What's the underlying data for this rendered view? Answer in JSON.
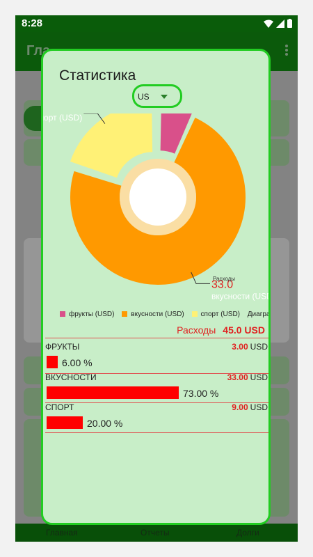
{
  "status": {
    "time": "8:28"
  },
  "background_app": {
    "title": "Гла",
    "nav": [
      "Главная",
      "Отчеты",
      "Долги"
    ]
  },
  "dialog": {
    "title": "Статистика",
    "currency_selected": "US",
    "legend": [
      {
        "label": "фрукты (USD)",
        "color": "#d9508a"
      },
      {
        "label": "вкусности (USD)",
        "color": "#ff9900"
      },
      {
        "label": "спорт (USD)",
        "color": "#fff176"
      },
      {
        "label": "Диаграмма",
        "color": ""
      }
    ],
    "total_label": "Расходы",
    "total_value": "45.0 USD",
    "categories": [
      {
        "name": "ФРУКТЫ",
        "amount": "3.00",
        "currency": "USD",
        "percent": "6.00 %",
        "share": 0.06
      },
      {
        "name": "ВКУСНОСТИ",
        "amount": "33.00",
        "currency": "USD",
        "percent": "73.00 %",
        "share": 0.73
      },
      {
        "name": "СПОРТ",
        "amount": "9.00",
        "currency": "USD",
        "percent": "20.00 %",
        "share": 0.2
      }
    ]
  },
  "chart_data": {
    "type": "pie",
    "center_label": "Расходы",
    "slices": [
      {
        "label": "фрукты (USD)",
        "value": 3.0,
        "value_label": "3.0",
        "color": "#d9508a"
      },
      {
        "label": "вкусности (USD)",
        "value": 33.0,
        "value_label": "33.0",
        "color": "#ff9900"
      },
      {
        "label": "спорт (USD)",
        "value": 9.0,
        "value_label": "9.0",
        "color": "#fff176"
      }
    ],
    "legend_position": "bottom"
  },
  "colors": {
    "accent": "#22cc22",
    "dialog_bg": "#c8eec8",
    "bar": "#ff0000",
    "total": "#e02020"
  }
}
